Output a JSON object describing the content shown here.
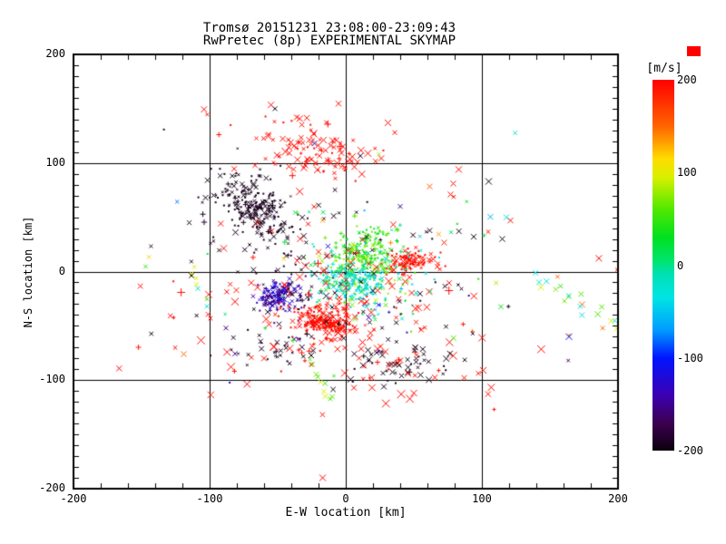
{
  "title": {
    "line1": "Tromsø 20151231 23:08:00-23:09:43",
    "line2": "RwPretec (8p) EXPERIMENTAL SKYMAP"
  },
  "chart_data": {
    "type": "scatter",
    "title": "Tromsø 20151231 23:08:00-23:09:43 / RwPretec (8p) EXPERIMENTAL SKYMAP",
    "xlabel": "E-W location [km]",
    "ylabel": "N-S location [km]",
    "xlim": [
      -200,
      200
    ],
    "ylim": [
      -200,
      200
    ],
    "x_ticks": [
      -200,
      -100,
      0,
      100,
      200
    ],
    "y_ticks": [
      200,
      100,
      0,
      -100,
      -200
    ],
    "x_minor_step": 20,
    "y_minor_step": 10,
    "grid_lines": [
      -100,
      0,
      100
    ],
    "grid": true,
    "background": "#ffffff",
    "axis_color": "#000000",
    "marker_styles": [
      "x",
      "dot",
      "plus"
    ],
    "colorbar": {
      "label": "[m/s]",
      "ticks": [
        200,
        100,
        0,
        -100,
        -200
      ],
      "vmin": -200,
      "vmax": 200,
      "position": "right",
      "over_range_marker_color": "#ff0000",
      "stops": [
        [
          200,
          "#ff0000"
        ],
        [
          150,
          "#ff6400"
        ],
        [
          115,
          "#ffdc00"
        ],
        [
          95,
          "#d8f000"
        ],
        [
          60,
          "#50e800"
        ],
        [
          30,
          "#00e020"
        ],
        [
          5,
          "#00e46e"
        ],
        [
          -10,
          "#00e0b4"
        ],
        [
          -35,
          "#00e4e4"
        ],
        [
          -70,
          "#009cff"
        ],
        [
          -100,
          "#0014ff"
        ],
        [
          -140,
          "#3c00b4"
        ],
        [
          -170,
          "#3c0050"
        ],
        [
          -200,
          "#0c000c"
        ]
      ]
    },
    "seed": 20151231,
    "clusters": [
      {
        "name": "black-nw-core",
        "cx": -68,
        "cy": 60,
        "sx": 13,
        "sy": 16,
        "corr": -0.6,
        "n": 210,
        "v": [
          -200,
          -185
        ],
        "markers": {
          "x": 0.45,
          "dot": 0.45,
          "plus": 0.1
        },
        "size": [
          2,
          6
        ]
      },
      {
        "name": "black-nw-spray",
        "cx": -62,
        "cy": 48,
        "sx": 26,
        "sy": 28,
        "corr": -0.4,
        "n": 60,
        "v": [
          -200,
          -185
        ],
        "markers": {
          "x": 0.5,
          "dot": 0.4,
          "plus": 0.1
        },
        "size": [
          2,
          7
        ]
      },
      {
        "name": "red-north-core",
        "cx": -16,
        "cy": 108,
        "sx": 20,
        "sy": 13,
        "corr": -0.3,
        "n": 95,
        "v": [
          188,
          200
        ],
        "markers": {
          "x": 0.75,
          "dot": 0.15,
          "plus": 0.1
        },
        "size": [
          3,
          8
        ]
      },
      {
        "name": "red-north-spray",
        "cx": -35,
        "cy": 128,
        "sx": 30,
        "sy": 18,
        "corr": 0,
        "n": 25,
        "v": [
          188,
          200
        ],
        "markers": {
          "x": 0.7,
          "dot": 0.2,
          "plus": 0.1
        },
        "size": [
          3,
          7
        ]
      },
      {
        "name": "green-center",
        "cx": 12,
        "cy": 12,
        "sx": 13,
        "sy": 16,
        "corr": 0.2,
        "n": 250,
        "v": [
          15,
          85
        ],
        "markers": {
          "x": 0.4,
          "dot": 0.35,
          "plus": 0.25
        },
        "size": [
          2,
          5
        ]
      },
      {
        "name": "cyan-center",
        "cx": 4,
        "cy": -9,
        "sx": 12,
        "sy": 12,
        "corr": 0,
        "n": 170,
        "v": [
          -55,
          -5
        ],
        "markers": {
          "x": 0.4,
          "dot": 0.35,
          "plus": 0.25
        },
        "size": [
          2,
          5
        ]
      },
      {
        "name": "center-spray",
        "cx": 12,
        "cy": 2,
        "sx": 30,
        "sy": 26,
        "corr": 0,
        "n": 110,
        "v": [
          -60,
          90
        ],
        "markers": {
          "x": 0.45,
          "dot": 0.3,
          "plus": 0.25
        },
        "size": [
          2,
          5
        ]
      },
      {
        "name": "red-east-blob",
        "cx": 48,
        "cy": 9,
        "sx": 9,
        "sy": 5,
        "corr": 0,
        "n": 95,
        "v": [
          188,
          200
        ],
        "markers": {
          "x": 0.55,
          "dot": 0.35,
          "plus": 0.1
        },
        "size": [
          2,
          6
        ]
      },
      {
        "name": "navy-blob",
        "cx": -50,
        "cy": -22,
        "sx": 7,
        "sy": 6,
        "corr": 0.3,
        "n": 140,
        "v": [
          -165,
          -110
        ],
        "markers": {
          "x": 0.5,
          "dot": 0.4,
          "plus": 0.1
        },
        "size": [
          2,
          5
        ]
      },
      {
        "name": "violet-fringe",
        "cx": -44,
        "cy": -28,
        "sx": 13,
        "sy": 9,
        "corr": 0,
        "n": 35,
        "v": [
          -175,
          -120
        ],
        "markers": {
          "x": 0.6,
          "dot": 0.3,
          "plus": 0.1
        },
        "size": [
          2,
          5
        ]
      },
      {
        "name": "red-south-dense",
        "cx": -15,
        "cy": -46,
        "sx": 13,
        "sy": 8,
        "corr": -0.2,
        "n": 230,
        "v": [
          186,
          200
        ],
        "markers": {
          "x": 0.55,
          "dot": 0.3,
          "plus": 0.15
        },
        "size": [
          2,
          6
        ]
      },
      {
        "name": "red-field",
        "cx": -5,
        "cy": -30,
        "sx": 58,
        "sy": 40,
        "corr": 0,
        "n": 140,
        "v": [
          188,
          200
        ],
        "markers": {
          "x": 0.85,
          "dot": 0.05,
          "plus": 0.1
        },
        "size": [
          4,
          9
        ]
      },
      {
        "name": "black-field",
        "cx": -5,
        "cy": -12,
        "sx": 58,
        "sy": 46,
        "corr": 0,
        "n": 80,
        "v": [
          -200,
          -188
        ],
        "markers": {
          "x": 0.7,
          "dot": 0.2,
          "plus": 0.1
        },
        "size": [
          3,
          7
        ]
      },
      {
        "name": "black-south",
        "cx": 35,
        "cy": -84,
        "sx": 22,
        "sy": 9,
        "corr": 0,
        "n": 45,
        "v": [
          -200,
          -188
        ],
        "markers": {
          "x": 0.7,
          "dot": 0.2,
          "plus": 0.1
        },
        "size": [
          3,
          7
        ]
      },
      {
        "name": "red-south-sparse",
        "cx": 35,
        "cy": -88,
        "sx": 25,
        "sy": 10,
        "corr": 0,
        "n": 18,
        "v": [
          190,
          200
        ],
        "markers": {
          "x": 0.8,
          "dot": 0.1,
          "plus": 0.1
        },
        "size": [
          4,
          8
        ]
      },
      {
        "name": "black-sw",
        "cx": -45,
        "cy": -70,
        "sx": 15,
        "sy": 8,
        "corr": 0,
        "n": 28,
        "v": [
          -200,
          -188
        ],
        "markers": {
          "x": 0.6,
          "dot": 0.3,
          "plus": 0.1
        },
        "size": [
          2,
          6
        ]
      },
      {
        "name": "rainbow-sparse",
        "cx": 0,
        "cy": -5,
        "sx": 75,
        "sy": 60,
        "corr": 0,
        "n": 50,
        "v": [
          -200,
          200
        ],
        "markers": {
          "x": 0.6,
          "dot": 0.2,
          "plus": 0.2
        },
        "size": [
          3,
          6
        ]
      }
    ],
    "chains": [
      {
        "name": "east-chain",
        "from": [
          138,
          -4
        ],
        "to": [
          200,
          -50
        ],
        "n": 20,
        "jitter": 7,
        "v_choices": [
          -30,
          -25,
          55,
          60,
          100,
          -35,
          150,
          45,
          -20,
          -28,
          -15,
          70
        ],
        "size": [
          4,
          7
        ]
      },
      {
        "name": "west-chain",
        "from": [
          -116,
          5
        ],
        "to": [
          -101,
          -30
        ],
        "n": 7,
        "jitter": 3,
        "v_choices": [
          60,
          -30,
          100,
          85,
          -20,
          95,
          50
        ],
        "size": [
          4,
          6
        ]
      },
      {
        "name": "south-green-chain",
        "from": [
          -27,
          -84
        ],
        "to": [
          -12,
          -118
        ],
        "n": 9,
        "jitter": 3,
        "v_choices": [
          55,
          62,
          45,
          100,
          70
        ],
        "size": [
          4,
          6
        ]
      }
    ],
    "outliers": [
      {
        "x": 105,
        "y": 83,
        "v": -195,
        "s": 7,
        "m": "x"
      },
      {
        "x": 94,
        "y": 32,
        "v": -195,
        "s": 6,
        "m": "x"
      },
      {
        "x": 115,
        "y": 30,
        "v": -195,
        "s": 6,
        "m": "x"
      },
      {
        "x": 118,
        "y": 50,
        "v": -30,
        "s": 6,
        "m": "x"
      },
      {
        "x": 121,
        "y": 47,
        "v": 195,
        "s": 6,
        "m": "x"
      },
      {
        "x": 83,
        "y": 94,
        "v": 195,
        "s": 7,
        "m": "x"
      },
      {
        "x": 79,
        "y": 81,
        "v": 195,
        "s": 6,
        "m": "x"
      },
      {
        "x": 77,
        "y": 71,
        "v": 195,
        "s": 6,
        "m": "x"
      },
      {
        "x": 31,
        "y": 137,
        "v": 195,
        "s": 7,
        "m": "x"
      },
      {
        "x": 36,
        "y": 128,
        "v": 195,
        "s": 5,
        "m": "x"
      },
      {
        "x": -36,
        "y": 142,
        "v": 195,
        "s": 6,
        "m": "x"
      },
      {
        "x": -52,
        "y": 150,
        "v": -195,
        "s": 5,
        "m": "x"
      },
      {
        "x": -103,
        "y": 68,
        "v": -195,
        "s": 6,
        "m": "x"
      },
      {
        "x": -115,
        "y": 45,
        "v": -195,
        "s": 5,
        "m": "x"
      },
      {
        "x": 93,
        "y": -55,
        "v": 160,
        "s": 4,
        "m": "plus"
      },
      {
        "x": 101,
        "y": -91,
        "v": 195,
        "s": 7,
        "m": "x"
      },
      {
        "x": 109,
        "y": -127,
        "v": 195,
        "s": 4,
        "m": "plus"
      },
      {
        "x": 164,
        "y": -60,
        "v": -110,
        "s": 7,
        "m": "x"
      },
      {
        "x": -17,
        "y": -190,
        "v": 195,
        "s": 7,
        "m": "x"
      },
      {
        "x": -119,
        "y": -76,
        "v": 150,
        "s": 6,
        "m": "x"
      },
      {
        "x": -15,
        "y": -115,
        "v": 95,
        "s": 6,
        "m": "x"
      },
      {
        "x": 6,
        "y": -107,
        "v": 195,
        "s": 6,
        "m": "x"
      },
      {
        "x": 28,
        "y": -106,
        "v": -195,
        "s": 6,
        "m": "x"
      },
      {
        "x": 50,
        "y": -112,
        "v": 195,
        "s": 7,
        "m": "x"
      },
      {
        "x": -23,
        "y": 118,
        "v": -150,
        "s": 6,
        "m": "x"
      },
      {
        "x": 40,
        "y": 60,
        "v": -150,
        "s": 5,
        "m": "x"
      },
      {
        "x": -88,
        "y": -52,
        "v": -160,
        "s": 5,
        "m": "x"
      },
      {
        "x": -60,
        "y": -80,
        "v": 195,
        "s": 6,
        "m": "x"
      },
      {
        "x": -17,
        "y": 47,
        "v": 135,
        "s": 5,
        "m": "x"
      }
    ]
  }
}
